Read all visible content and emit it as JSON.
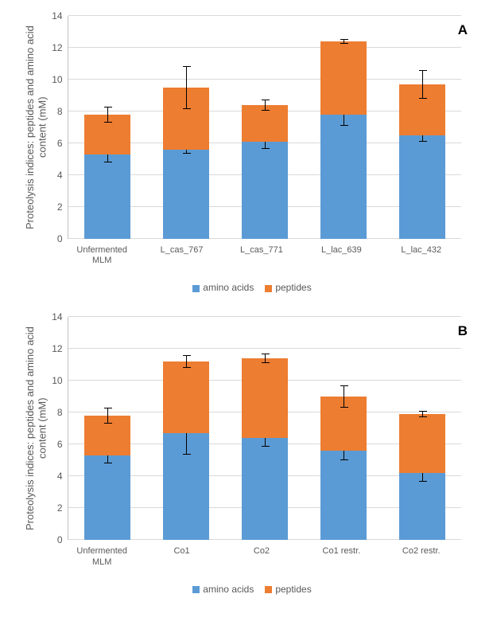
{
  "colors": {
    "amino": "#5b9bd5",
    "peptides": "#ed7d31",
    "grid": "#d9d9d9",
    "axis": "#bfbfbf",
    "text": "#595959"
  },
  "ylabel": "Proteolysis indices: peptides and amino acid content (mM)",
  "legend": {
    "amino": "amino acids",
    "peptides": "peptides"
  },
  "chartA": {
    "panel": "A",
    "ymax": 14,
    "ystep": 2,
    "cats": [
      "Unfermented MLM",
      "L_cas_767",
      "L_cas_771",
      "L_lac_639",
      "L_lac_432"
    ],
    "amino": [
      5.3,
      5.6,
      6.1,
      7.8,
      6.5
    ],
    "peptides": [
      2.5,
      3.9,
      2.3,
      4.6,
      3.2
    ],
    "err_amino": [
      0.5,
      0.25,
      0.45,
      0.7,
      0.4
    ],
    "err_pep": [
      0.5,
      1.35,
      0.35,
      0.15,
      0.9
    ]
  },
  "chartB": {
    "panel": "B",
    "ymax": 14,
    "ystep": 2,
    "cats": [
      "Unfermented MLM",
      "Co1",
      "Co2",
      "Co1 restr.",
      "Co2 restr."
    ],
    "amino": [
      5.3,
      6.7,
      6.4,
      5.6,
      4.2
    ],
    "peptides": [
      2.5,
      4.5,
      5.0,
      3.4,
      3.7
    ],
    "err_amino": [
      0.5,
      1.35,
      0.55,
      0.6,
      0.55
    ],
    "err_pep": [
      0.5,
      0.4,
      0.3,
      0.7,
      0.2
    ]
  }
}
